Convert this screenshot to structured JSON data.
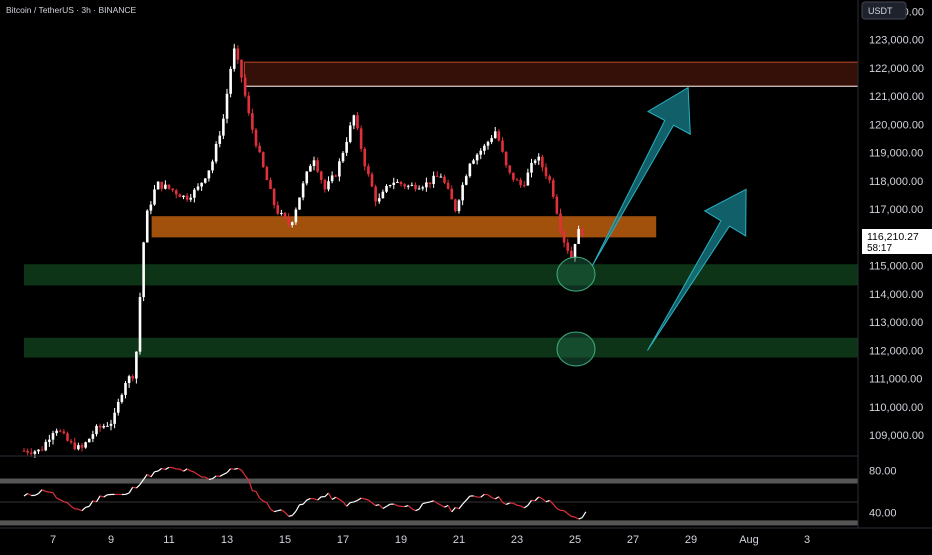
{
  "header": {
    "symbol_title": "Bitcoin / TetherUS · 3h · BINANCE"
  },
  "currency_badge": "USDT",
  "price_tag": {
    "price": "116,210.27",
    "countdown": "58:17"
  },
  "colors": {
    "background": "#000000",
    "up": "#ffffff",
    "down": "#e0303c",
    "resistance_zone_fill": "#3a120a",
    "resistance_zone_edge": "#d4502a",
    "support_zone_orange": "#b45a0e",
    "support_zone_green": "#0e3a1a",
    "arrow": "#157f8c",
    "circle": "#1e6b4a",
    "rsi_line_up": "#ffffff",
    "rsi_line_down": "#e0303c",
    "rsi_band": "#555555"
  },
  "chart_data": [
    {
      "type": "candlestick",
      "title": "",
      "x": [
        "7",
        "9",
        "11",
        "13",
        "15",
        "17",
        "19",
        "21",
        "23",
        "25",
        "27",
        "29",
        "Aug",
        "3"
      ],
      "y_ticks": [
        "124,000.00",
        "123,000.00",
        "122,000.00",
        "121,000.00",
        "120,000.00",
        "119,000.00",
        "118,000.00",
        "117,000.00",
        "116,000.00",
        "115,000.00",
        "114,000.00",
        "113,000.00",
        "112,000.00",
        "111,000.00",
        "110,000.00",
        "109,000.00"
      ],
      "ylim": [
        108300,
        124400
      ],
      "y_scale": "linear",
      "grid": false,
      "last_price": 116210.27,
      "candle_anchors": [
        {
          "day": 6.7,
          "price": 108450
        },
        {
          "day": 7.2,
          "price": 109300
        },
        {
          "day": 7.7,
          "price": 108700
        },
        {
          "day": 8.1,
          "price": 108500
        },
        {
          "day": 8.6,
          "price": 109200
        },
        {
          "day": 9.2,
          "price": 109500
        },
        {
          "day": 9.6,
          "price": 110900
        },
        {
          "day": 9.95,
          "price": 111200
        },
        {
          "day": 10.3,
          "price": 116600
        },
        {
          "day": 10.7,
          "price": 117900
        },
        {
          "day": 11.2,
          "price": 117700
        },
        {
          "day": 11.7,
          "price": 117400
        },
        {
          "day": 12.1,
          "price": 117700
        },
        {
          "day": 12.6,
          "price": 118600
        },
        {
          "day": 13.0,
          "price": 120200
        },
        {
          "day": 13.35,
          "price": 122700
        },
        {
          "day": 13.6,
          "price": 121800
        },
        {
          "day": 13.9,
          "price": 120200
        },
        {
          "day": 14.3,
          "price": 118700
        },
        {
          "day": 14.8,
          "price": 117000
        },
        {
          "day": 15.3,
          "price": 116400
        },
        {
          "day": 15.7,
          "price": 117700
        },
        {
          "day": 16.1,
          "price": 118900
        },
        {
          "day": 16.5,
          "price": 117700
        },
        {
          "day": 16.9,
          "price": 118300
        },
        {
          "day": 17.5,
          "price": 120300
        },
        {
          "day": 17.9,
          "price": 118500
        },
        {
          "day": 18.3,
          "price": 117200
        },
        {
          "day": 18.8,
          "price": 118000
        },
        {
          "day": 19.4,
          "price": 117800
        },
        {
          "day": 20.0,
          "price": 117900
        },
        {
          "day": 20.5,
          "price": 118200
        },
        {
          "day": 21.0,
          "price": 117000
        },
        {
          "day": 21.5,
          "price": 118700
        },
        {
          "day": 22.0,
          "price": 119200
        },
        {
          "day": 22.4,
          "price": 119800
        },
        {
          "day": 22.8,
          "price": 118300
        },
        {
          "day": 23.3,
          "price": 117800
        },
        {
          "day": 23.8,
          "price": 118900
        },
        {
          "day": 24.3,
          "price": 117900
        },
        {
          "day": 24.7,
          "price": 116000
        },
        {
          "day": 25.0,
          "price": 115300
        },
        {
          "day": 25.2,
          "price": 116200
        }
      ],
      "zones": [
        {
          "name": "resistance-zone",
          "from_day": 13.6,
          "to_day": 35.0,
          "low": 121350,
          "high": 122200
        },
        {
          "name": "orange-support-zone",
          "from_day": 10.4,
          "to_day": 27.8,
          "low": 116000,
          "high": 116750
        },
        {
          "name": "green-zone-upper",
          "from_day": 6.0,
          "to_day": 35.0,
          "low": 114300,
          "high": 115050
        },
        {
          "name": "green-zone-lower",
          "from_day": 6.0,
          "to_day": 35.0,
          "low": 111750,
          "high": 112450
        }
      ],
      "circles": [
        {
          "day": 25.0,
          "price": 114700
        },
        {
          "day": 25.0,
          "price": 112050
        }
      ],
      "arrows": [
        {
          "from_day": 25.6,
          "from_price": 115000,
          "to_day": 28.9,
          "to_price": 121300
        },
        {
          "from_day": 27.5,
          "from_price": 112000,
          "to_day": 30.9,
          "to_price": 117700
        }
      ]
    },
    {
      "type": "line",
      "title": "",
      "y_ticks": [
        "80.00",
        "40.00"
      ],
      "ylim": [
        28,
        92
      ],
      "bands": [
        70,
        30
      ],
      "rsi_anchors": [
        {
          "day": 6.0,
          "value": 55
        },
        {
          "day": 6.8,
          "value": 62
        },
        {
          "day": 7.4,
          "value": 48
        },
        {
          "day": 8.0,
          "value": 42
        },
        {
          "day": 8.8,
          "value": 58
        },
        {
          "day": 9.5,
          "value": 56
        },
        {
          "day": 10.2,
          "value": 74
        },
        {
          "day": 10.9,
          "value": 82
        },
        {
          "day": 11.6,
          "value": 80
        },
        {
          "day": 12.3,
          "value": 72
        },
        {
          "day": 13.0,
          "value": 78
        },
        {
          "day": 13.4,
          "value": 84
        },
        {
          "day": 13.9,
          "value": 62
        },
        {
          "day": 14.5,
          "value": 44
        },
        {
          "day": 15.2,
          "value": 38
        },
        {
          "day": 15.8,
          "value": 52
        },
        {
          "day": 16.5,
          "value": 56
        },
        {
          "day": 17.2,
          "value": 47
        },
        {
          "day": 17.7,
          "value": 54
        },
        {
          "day": 18.2,
          "value": 45
        },
        {
          "day": 18.8,
          "value": 48
        },
        {
          "day": 19.5,
          "value": 44
        },
        {
          "day": 20.2,
          "value": 50
        },
        {
          "day": 20.8,
          "value": 42
        },
        {
          "day": 21.4,
          "value": 54
        },
        {
          "day": 22.0,
          "value": 58
        },
        {
          "day": 22.6,
          "value": 50
        },
        {
          "day": 23.2,
          "value": 44
        },
        {
          "day": 23.8,
          "value": 55
        },
        {
          "day": 24.3,
          "value": 47
        },
        {
          "day": 24.8,
          "value": 36
        },
        {
          "day": 25.1,
          "value": 33
        },
        {
          "day": 25.4,
          "value": 40
        }
      ]
    }
  ],
  "icons": {
    "none": ""
  }
}
